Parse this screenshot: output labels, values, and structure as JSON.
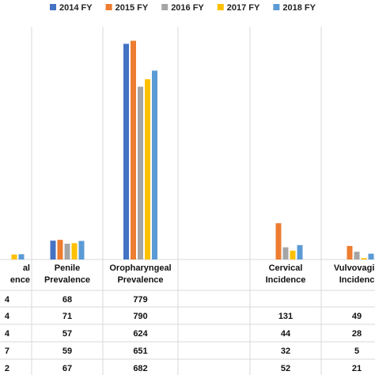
{
  "chart_data": {
    "type": "bar",
    "series": [
      {
        "name": "2014 FY",
        "color": "#4472C4",
        "values": [
          null,
          68,
          779,
          null,
          null,
          null
        ]
      },
      {
        "name": "2015 FY",
        "color": "#ED7D31",
        "values": [
          null,
          71,
          790,
          null,
          131,
          49
        ]
      },
      {
        "name": "2016 FY",
        "color": "#A5A5A5",
        "values": [
          null,
          57,
          624,
          null,
          44,
          28
        ]
      },
      {
        "name": "2017 FY",
        "color": "#FFC000",
        "values": [
          null,
          59,
          651,
          null,
          32,
          5
        ]
      },
      {
        "name": "2018 FY",
        "color": "#5B9BD5",
        "values": [
          null,
          67,
          682,
          null,
          52,
          21
        ]
      }
    ],
    "categories": [
      {
        "lines": [
          "al",
          "ence"
        ]
      },
      {
        "lines": [
          "Penile",
          "Prevalence"
        ]
      },
      {
        "lines": [
          "Oropharyngeal",
          "Prevalence"
        ]
      },
      {
        "lines": [
          "",
          ""
        ]
      },
      {
        "lines": [
          "Cervical",
          "Incidence"
        ]
      },
      {
        "lines": [
          "Vulvovagin",
          "Incidenc"
        ]
      }
    ],
    "partial_cells": [
      "4",
      "4",
      "4",
      "7",
      "2"
    ],
    "y_scale_max": 840,
    "grid": false,
    "legend_position": "top"
  }
}
